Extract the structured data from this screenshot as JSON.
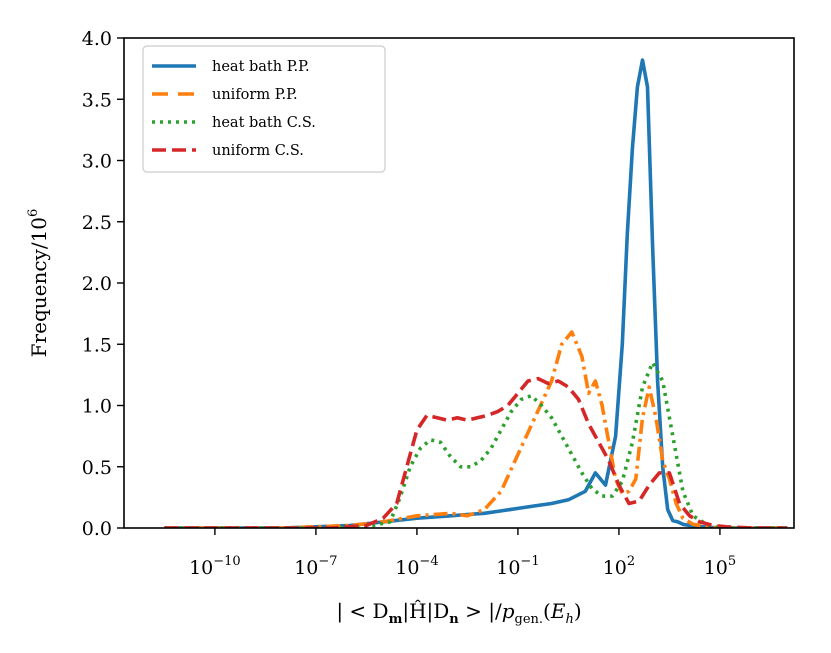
{
  "chart_data": {
    "type": "line",
    "title": "",
    "xlabel": "| < D_m|Ĥ|D_n > |/p_gen.(E_h)",
    "ylabel": "Frequency/10⁶",
    "x_scale": "log",
    "xlim_exp": [
      -12.7,
      7.2
    ],
    "ylim": [
      0,
      4.0
    ],
    "x_ticks": [
      {
        "base": "10",
        "exp": "−10",
        "pos": -10
      },
      {
        "base": "10",
        "exp": "−7",
        "pos": -7
      },
      {
        "base": "10",
        "exp": "−4",
        "pos": -4
      },
      {
        "base": "10",
        "exp": "−1",
        "pos": -1
      },
      {
        "base": "10",
        "exp": "2",
        "pos": 2
      },
      {
        "base": "10",
        "exp": "5",
        "pos": 5
      }
    ],
    "y_ticks": [
      "0.0",
      "0.5",
      "1.0",
      "1.5",
      "2.0",
      "2.5",
      "3.0",
      "3.5",
      "4.0"
    ],
    "legend_position": "top-left",
    "series": [
      {
        "name": "heat bath P.P.",
        "color": "#1f77b4",
        "style": "solid",
        "x_log10": [
          -11.5,
          -8,
          -6,
          -5,
          -4,
          -3,
          -2.5,
          -2,
          -1.5,
          -1,
          -0.5,
          0,
          0.5,
          1,
          1.3,
          1.6,
          1.9,
          2.1,
          2.25,
          2.4,
          2.55,
          2.7,
          2.85,
          3.0,
          3.15,
          3.3,
          3.45,
          3.6,
          3.75,
          3.9,
          4.1,
          4.5,
          5,
          6,
          7
        ],
        "y": [
          0.0,
          0.0,
          0.02,
          0.05,
          0.08,
          0.1,
          0.11,
          0.12,
          0.14,
          0.16,
          0.18,
          0.2,
          0.23,
          0.3,
          0.45,
          0.35,
          0.75,
          1.5,
          2.4,
          3.1,
          3.6,
          3.82,
          3.6,
          2.3,
          1.2,
          0.5,
          0.15,
          0.06,
          0.05,
          0.03,
          0.02,
          0.01,
          0.0,
          0.0,
          0.0
        ]
      },
      {
        "name": "uniform P.P.",
        "color": "#ff7f0e",
        "style": "dashdot",
        "x_log10": [
          -11.5,
          -8,
          -6,
          -5,
          -4,
          -3,
          -2.5,
          -2,
          -1.5,
          -1,
          -0.5,
          0,
          0.3,
          0.6,
          0.9,
          1.1,
          1.3,
          1.5,
          1.7,
          1.9,
          2.1,
          2.3,
          2.5,
          2.7,
          2.9,
          3.1,
          3.3,
          3.5,
          3.7,
          3.9,
          4.2,
          4.6,
          5,
          6,
          7
        ],
        "y": [
          0.0,
          0.0,
          0.02,
          0.05,
          0.1,
          0.12,
          0.1,
          0.15,
          0.3,
          0.6,
          0.9,
          1.2,
          1.5,
          1.6,
          1.4,
          1.1,
          1.2,
          1.0,
          0.7,
          0.4,
          0.28,
          0.3,
          0.4,
          0.9,
          1.15,
          0.9,
          0.55,
          0.4,
          0.2,
          0.08,
          0.03,
          0.01,
          0.0,
          0.0,
          0.0
        ]
      },
      {
        "name": "heat bath C.S.",
        "color": "#2ca02c",
        "style": "dotted",
        "x_log10": [
          -11.5,
          -8,
          -6.5,
          -5.5,
          -4.8,
          -4.5,
          -4.2,
          -3.9,
          -3.6,
          -3.3,
          -3.0,
          -2.7,
          -2.4,
          -2.1,
          -1.8,
          -1.5,
          -1.2,
          -0.9,
          -0.6,
          -0.3,
          0,
          0.3,
          0.6,
          0.9,
          1.2,
          1.5,
          1.8,
          2.1,
          2.4,
          2.7,
          3.0,
          3.3,
          3.6,
          3.9,
          4.2,
          4.6,
          5,
          6,
          7
        ],
        "y": [
          0.0,
          0.0,
          0.0,
          0.01,
          0.05,
          0.25,
          0.5,
          0.65,
          0.72,
          0.7,
          0.58,
          0.5,
          0.5,
          0.55,
          0.65,
          0.8,
          0.95,
          1.05,
          1.08,
          1.0,
          0.9,
          0.75,
          0.6,
          0.45,
          0.32,
          0.26,
          0.26,
          0.38,
          0.7,
          1.15,
          1.35,
          1.2,
          0.75,
          0.3,
          0.1,
          0.03,
          0.0,
          0.0,
          0.0
        ]
      },
      {
        "name": "uniform C.S.",
        "color": "#d62728",
        "style": "dashed",
        "x_log10": [
          -11.5,
          -8,
          -6.5,
          -5.5,
          -5.0,
          -4.6,
          -4.3,
          -4.0,
          -3.7,
          -3.4,
          -3.1,
          -2.8,
          -2.5,
          -2.2,
          -1.9,
          -1.6,
          -1.3,
          -1.0,
          -0.7,
          -0.4,
          -0.1,
          0.2,
          0.5,
          0.8,
          1.1,
          1.4,
          1.7,
          2.0,
          2.3,
          2.6,
          2.9,
          3.2,
          3.5,
          3.8,
          4.1,
          4.4,
          4.8,
          5.2,
          6,
          7
        ],
        "y": [
          0.0,
          0.0,
          0.0,
          0.02,
          0.08,
          0.2,
          0.5,
          0.8,
          0.92,
          0.9,
          0.88,
          0.9,
          0.88,
          0.9,
          0.92,
          0.95,
          1.0,
          1.1,
          1.2,
          1.22,
          1.18,
          1.2,
          1.15,
          1.05,
          0.85,
          0.7,
          0.55,
          0.35,
          0.2,
          0.22,
          0.35,
          0.45,
          0.45,
          0.2,
          0.1,
          0.05,
          0.02,
          0.01,
          0.0,
          0.0
        ]
      }
    ]
  }
}
